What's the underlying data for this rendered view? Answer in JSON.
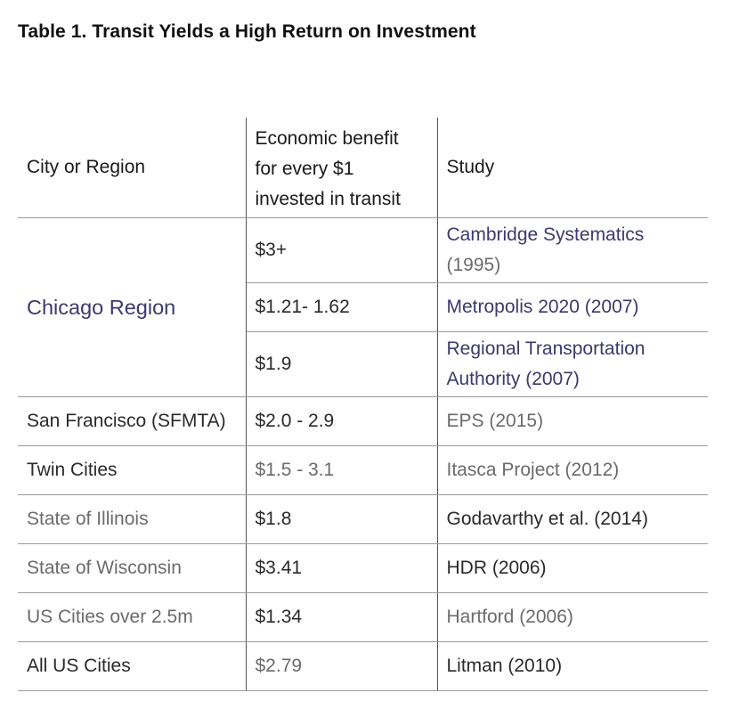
{
  "title": "Table 1. Transit Yields a High Return on Investment",
  "headers": {
    "city": "City or Region",
    "benefit": [
      "Economic benefit",
      "for every $1",
      "invested in transit"
    ],
    "study": "Study"
  },
  "chicago": {
    "city": "Chicago Region",
    "rows": [
      {
        "benefit": "$3+",
        "study": [
          "Cambridge Systematics",
          "(1995)"
        ]
      },
      {
        "benefit": "$1.21- 1.62",
        "study": [
          "Metropolis 2020 (2007)"
        ]
      },
      {
        "benefit": "$1.9",
        "study": [
          "Regional Transportation",
          "Authority (2007)"
        ]
      }
    ]
  },
  "rows": [
    {
      "city": "San Francisco (SFMTA)",
      "benefit": "$2.0 - 2.9",
      "study": "EPS (2015)"
    },
    {
      "city": "Twin Cities",
      "benefit": "$1.5 - 3.1",
      "study": "Itasca Project (2012)"
    },
    {
      "city": "State of Illinois",
      "benefit": "$1.8",
      "study": "Godavarthy et al. (2014)"
    },
    {
      "city": "State of Wisconsin",
      "benefit": "$3.41",
      "study": "HDR (2006)"
    },
    {
      "city": "US Cities over 2.5m",
      "benefit": "$1.34",
      "study": "Hartford (2006)"
    },
    {
      "city": "All US Cities",
      "benefit": "$2.79",
      "study": "Litman (2010)"
    }
  ],
  "colors": {
    "navy_text": "#3c3a6b",
    "grey_text": "#6b6b6b",
    "rule": "#9a9a9a"
  }
}
